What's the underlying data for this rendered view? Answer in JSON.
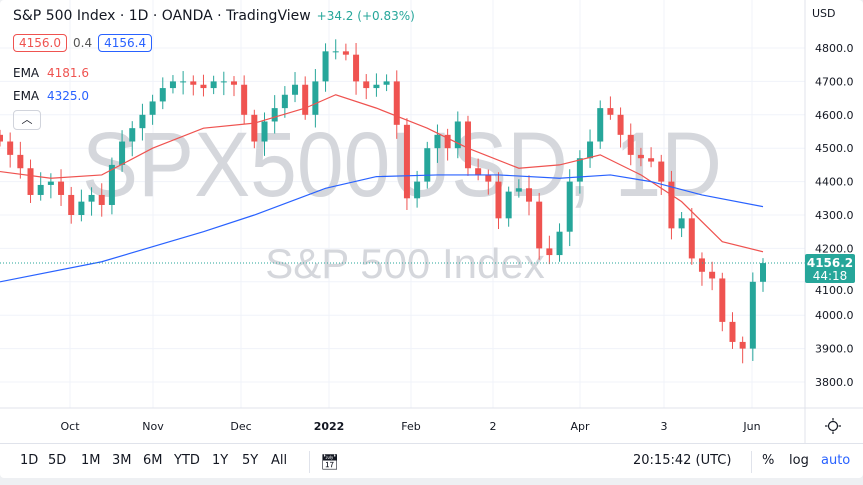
{
  "header": {
    "title": "S&P 500 Index · 1D · OANDA · TradingView",
    "change": "+34.2 (+0.83%)",
    "bid": "4156.0",
    "spread": "0.4",
    "ask": "4156.4",
    "ema1_label": "EMA",
    "ema1_value": "4181.6",
    "ema2_label": "EMA",
    "ema2_value": "4325.0"
  },
  "watermark": {
    "symbol": "SPX500USD, 1D",
    "name": "S&P 500 Index"
  },
  "colors": {
    "up": "#26a69a",
    "down": "#ef5350",
    "ema_fast": "#ef5350",
    "ema_slow": "#2962ff",
    "accent": "#2962ff"
  },
  "chart_data": {
    "type": "candlestick",
    "currency": "USD",
    "ylim": [
      3750,
      4880
    ],
    "yticks": [
      "3800.0",
      "3900.0",
      "4000.0",
      "4100.0",
      "4200.0",
      "4300.0",
      "4400.0",
      "4500.0",
      "4600.0",
      "4700.0",
      "4800.0"
    ],
    "xticks": [
      "Oct",
      "Nov",
      "Dec",
      "2022",
      "Feb",
      "2",
      "Apr",
      "3",
      "Jun"
    ],
    "last_price": "4156.2",
    "countdown": "44:18",
    "closes": [
      4520,
      4480,
      4440,
      4360,
      4390,
      4400,
      4360,
      4300,
      4340,
      4360,
      4330,
      4450,
      4520,
      4560,
      4600,
      4640,
      4680,
      4700,
      4700,
      4690,
      4680,
      4700,
      4700,
      4690,
      4600,
      4520,
      4580,
      4620,
      4660,
      4690,
      4600,
      4700,
      4790,
      4790,
      4780,
      4700,
      4680,
      4690,
      4700,
      4570,
      4350,
      4400,
      4500,
      4540,
      4500,
      4580,
      4440,
      4420,
      4400,
      4290,
      4370,
      4380,
      4340,
      4200,
      4180,
      4250,
      4400,
      4470,
      4520,
      4620,
      4600,
      4540,
      4480,
      4470,
      4460,
      4400,
      4260,
      4290,
      4170,
      4130,
      4110,
      3980,
      3920,
      3900,
      4100,
      4156
    ],
    "series": [
      {
        "name": "EMA",
        "values": [
          [
            0,
            4430
          ],
          [
            5,
            4410
          ],
          [
            10,
            4420
          ],
          [
            15,
            4500
          ],
          [
            20,
            4560
          ],
          [
            25,
            4575
          ],
          [
            30,
            4620
          ],
          [
            33,
            4660
          ],
          [
            37,
            4620
          ],
          [
            42,
            4560
          ],
          [
            46,
            4500
          ],
          [
            51,
            4440
          ],
          [
            55,
            4450
          ],
          [
            59,
            4480
          ],
          [
            63,
            4420
          ],
          [
            67,
            4340
          ],
          [
            71,
            4220
          ],
          [
            75,
            4190
          ]
        ]
      },
      {
        "name": "EMA",
        "values": [
          [
            0,
            4100
          ],
          [
            10,
            4160
          ],
          [
            20,
            4250
          ],
          [
            25,
            4300
          ],
          [
            32,
            4380
          ],
          [
            37,
            4415
          ],
          [
            43,
            4420
          ],
          [
            49,
            4420
          ],
          [
            55,
            4410
          ],
          [
            60,
            4420
          ],
          [
            64,
            4400
          ],
          [
            69,
            4360
          ],
          [
            75,
            4325
          ]
        ]
      }
    ]
  },
  "toolbar": {
    "ranges": [
      "1D",
      "5D",
      "1M",
      "3M",
      "6M",
      "YTD",
      "1Y",
      "5Y",
      "All"
    ],
    "time": "20:15:42 (UTC)",
    "percent": "%",
    "log": "log",
    "auto": "auto"
  }
}
